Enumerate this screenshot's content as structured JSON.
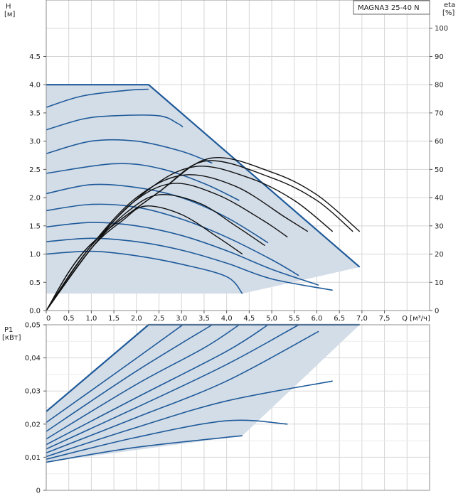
{
  "model_label": "MAGNA3 25-40 N",
  "colors": {
    "envelope_fill": "#d3dde8",
    "curve_blue": "#1f5a99",
    "efficiency_black": "#111111",
    "grid": "#d6d6d6"
  },
  "chart_data": [
    {
      "type": "line",
      "panel": "head-flow",
      "ylabel": "H",
      "ylabel_unit": "[м]",
      "y2label": "eta",
      "y2label_unit": "[%]",
      "xlabel": "Q [м³/ч]",
      "xlim": [
        0,
        8.5
      ],
      "ylim": [
        0,
        5.5
      ],
      "y2lim": [
        0,
        110
      ],
      "x_ticks": [
        "0",
        "0,5",
        "1,0",
        "1,5",
        "2,0",
        "2,5",
        "3,0",
        "3,5",
        "4,0",
        "4,5",
        "5,0",
        "5,5",
        "6,0",
        "6,5",
        "7,0",
        "7,5"
      ],
      "x_tick_values": [
        0,
        0.5,
        1.0,
        1.5,
        2.0,
        2.5,
        3.0,
        3.5,
        4.0,
        4.5,
        5.0,
        5.5,
        6.0,
        6.5,
        7.0,
        7.5
      ],
      "y_ticks": [
        "0.0",
        "0.5",
        "1.0",
        "1.5",
        "2.0",
        "2.5",
        "3.0",
        "3.5",
        "4.0",
        "4.5"
      ],
      "y_tick_values": [
        0,
        0.5,
        1.0,
        1.5,
        2.0,
        2.5,
        3.0,
        3.5,
        4.0,
        4.5
      ],
      "y2_ticks": [
        "0",
        "10",
        "20",
        "30",
        "40",
        "50",
        "60",
        "70",
        "80",
        "90",
        "100"
      ],
      "y2_tick_values": [
        0,
        10,
        20,
        30,
        40,
        50,
        60,
        70,
        80,
        90,
        100
      ],
      "grid": true,
      "envelope": [
        [
          0,
          4.0
        ],
        [
          2.27,
          4.0
        ],
        [
          6.95,
          0.77
        ],
        [
          4.35,
          0.3
        ],
        [
          0.0,
          0.3
        ]
      ],
      "performance_curves": [
        {
          "points": [
            [
              0,
              3.6
            ],
            [
              0.8,
              3.8
            ],
            [
              1.8,
              3.9
            ],
            [
              2.27,
              3.92
            ]
          ]
        },
        {
          "points": [
            [
              0,
              3.2
            ],
            [
              0.8,
              3.39
            ],
            [
              1.5,
              3.45
            ],
            [
              2.5,
              3.45
            ],
            [
              2.9,
              3.32
            ],
            [
              3.03,
              3.25
            ]
          ]
        },
        {
          "points": [
            [
              0,
              2.78
            ],
            [
              1.0,
              3.0
            ],
            [
              2.0,
              3.0
            ],
            [
              3.0,
              2.82
            ],
            [
              3.68,
              2.61
            ]
          ]
        },
        {
          "points": [
            [
              0,
              2.43
            ],
            [
              1.5,
              2.6
            ],
            [
              2.5,
              2.52
            ],
            [
              3.5,
              2.25
            ],
            [
              4.28,
              1.95
            ]
          ]
        },
        {
          "points": [
            [
              0,
              2.07
            ],
            [
              1.0,
              2.23
            ],
            [
              2.0,
              2.18
            ],
            [
              3.0,
              2.0
            ],
            [
              4.0,
              1.65
            ],
            [
              4.92,
              1.2
            ]
          ]
        },
        {
          "points": [
            [
              0,
              1.77
            ],
            [
              1.0,
              1.88
            ],
            [
              2.0,
              1.83
            ],
            [
              3.0,
              1.62
            ],
            [
              4.0,
              1.3
            ],
            [
              5.0,
              0.9
            ],
            [
              5.6,
              0.62
            ]
          ]
        },
        {
          "points": [
            [
              0,
              1.48
            ],
            [
              1.0,
              1.56
            ],
            [
              2.0,
              1.5
            ],
            [
              3.0,
              1.33
            ],
            [
              4.0,
              1.06
            ],
            [
              5.0,
              0.73
            ],
            [
              6.04,
              0.45
            ]
          ]
        },
        {
          "points": [
            [
              0,
              1.22
            ],
            [
              1.0,
              1.28
            ],
            [
              2.0,
              1.22
            ],
            [
              3.0,
              1.07
            ],
            [
              4.0,
              0.84
            ],
            [
              5.0,
              0.56
            ],
            [
              6.35,
              0.36
            ]
          ]
        },
        {
          "points": [
            [
              0,
              1.0
            ],
            [
              1.0,
              1.05
            ],
            [
              2.0,
              0.97
            ],
            [
              3.0,
              0.82
            ],
            [
              4.0,
              0.6
            ],
            [
              4.35,
              0.3
            ]
          ]
        }
      ],
      "efficiency_curves": [
        {
          "points": [
            [
              0,
              0
            ],
            [
              0.9,
              22
            ],
            [
              2.5,
              42
            ],
            [
              3.65,
              54
            ],
            [
              5.0,
              49
            ],
            [
              6.0,
              41
            ],
            [
              6.95,
              28
            ]
          ]
        },
        {
          "points": [
            [
              0,
              0
            ],
            [
              0.9,
              22
            ],
            [
              2.5,
              42
            ],
            [
              3.55,
              53
            ],
            [
              5.0,
              47
            ],
            [
              6.0,
              39
            ],
            [
              6.8,
              28
            ]
          ]
        },
        {
          "points": [
            [
              0,
              0
            ],
            [
              0.95,
              22
            ],
            [
              2.2,
              42
            ],
            [
              3.3,
              51
            ],
            [
              4.5,
              47
            ],
            [
              5.5,
              39
            ],
            [
              6.35,
              28
            ]
          ]
        },
        {
          "points": [
            [
              0,
              0
            ],
            [
              0.95,
              22
            ],
            [
              2.0,
              40
            ],
            [
              3.05,
              48
            ],
            [
              4.2,
              44
            ],
            [
              5.3,
              33
            ],
            [
              5.8,
              28
            ]
          ]
        },
        {
          "points": [
            [
              0,
              0
            ],
            [
              1.0,
              22
            ],
            [
              1.9,
              38
            ],
            [
              2.8,
              45
            ],
            [
              3.8,
              41
            ],
            [
              4.8,
              32
            ],
            [
              5.35,
              26
            ]
          ]
        },
        {
          "points": [
            [
              0,
              0
            ],
            [
              1.0,
              22
            ],
            [
              1.8,
              35
            ],
            [
              2.5,
              41
            ],
            [
              3.4,
              38
            ],
            [
              4.2,
              30
            ],
            [
              4.85,
              23
            ]
          ]
        },
        {
          "points": [
            [
              0,
              0
            ],
            [
              1.0,
              22
            ],
            [
              1.7,
              32
            ],
            [
              2.2,
              37
            ],
            [
              3.0,
              34
            ],
            [
              3.8,
              26
            ],
            [
              4.35,
              20
            ]
          ]
        }
      ]
    },
    {
      "type": "line",
      "panel": "power-flow",
      "ylabel": "P1",
      "ylabel_unit": "[кВт]",
      "xlim": [
        0,
        8.5
      ],
      "ylim": [
        0,
        0.05
      ],
      "y_ticks": [
        "0",
        "0,01",
        "0,02",
        "0,03",
        "0,04",
        "0,05"
      ],
      "y_tick_values": [
        0,
        0.01,
        0.02,
        0.03,
        0.04,
        0.05
      ],
      "grid": true,
      "envelope": [
        [
          0,
          0.0238
        ],
        [
          2.27,
          0.05
        ],
        [
          6.95,
          0.05
        ],
        [
          4.35,
          0.0165
        ],
        [
          0,
          0.0085
        ]
      ],
      "performance_curves": [
        {
          "points": [
            [
              0,
              0.0238
            ],
            [
              2.27,
              0.05
            ]
          ]
        },
        {
          "points": [
            [
              0,
              0.0205
            ],
            [
              1.5,
              0.035
            ],
            [
              3.03,
              0.05
            ]
          ]
        },
        {
          "points": [
            [
              0,
              0.0178
            ],
            [
              2.0,
              0.036
            ],
            [
              3.68,
              0.05
            ]
          ]
        },
        {
          "points": [
            [
              0,
              0.0155
            ],
            [
              2.0,
              0.032
            ],
            [
              3.5,
              0.043
            ],
            [
              4.28,
              0.05
            ]
          ]
        },
        {
          "points": [
            [
              0,
              0.0138
            ],
            [
              2.0,
              0.028
            ],
            [
              4.0,
              0.042
            ],
            [
              4.92,
              0.05
            ]
          ]
        },
        {
          "points": [
            [
              0,
              0.0125
            ],
            [
              2.0,
              0.025
            ],
            [
              4.0,
              0.038
            ],
            [
              5.6,
              0.05
            ]
          ]
        },
        {
          "points": [
            [
              0,
              0.0113
            ],
            [
              2.0,
              0.022
            ],
            [
              4.0,
              0.033
            ],
            [
              6.04,
              0.048
            ]
          ]
        },
        {
          "points": [
            [
              0,
              0.0102
            ],
            [
              2.0,
              0.019
            ],
            [
              4.0,
              0.027
            ],
            [
              6.35,
              0.033
            ]
          ]
        },
        {
          "points": [
            [
              0,
              0.0094
            ],
            [
              2.0,
              0.016
            ],
            [
              4.0,
              0.021
            ],
            [
              5.35,
              0.02
            ]
          ]
        },
        {
          "points": [
            [
              0,
              0.0085
            ],
            [
              2.0,
              0.013
            ],
            [
              4.35,
              0.0165
            ]
          ]
        }
      ]
    }
  ]
}
